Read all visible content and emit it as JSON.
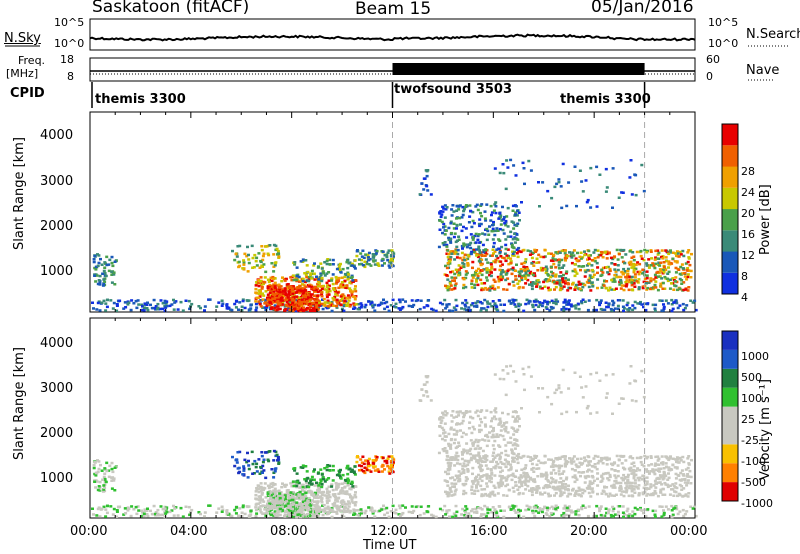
{
  "header": {
    "title": "Saskatoon (fitACF)",
    "beam": "Beam 15",
    "date": "05/Jan/2016"
  },
  "left_labels": {
    "nsky": "N.Sky",
    "freq_line1": "Freq.",
    "freq_line2": "[MHz]",
    "cpid": "CPID"
  },
  "right_labels": {
    "nsearch": "N.Search",
    "nave": "Nave"
  },
  "noise_axis": {
    "top": "10^5",
    "bottom": "10^0",
    "right_top": "10^5",
    "right_bottom": "10^0"
  },
  "freq_axis": {
    "left_ticks": [
      "18",
      "8"
    ],
    "right_ticks": [
      "60",
      "0"
    ]
  },
  "cpid_segments": [
    {
      "label": "themis 3300",
      "start_hour": 0,
      "end_hour": 12
    },
    {
      "label": "twofsound 3503",
      "start_hour": 12,
      "end_hour": 22
    },
    {
      "label": "themis 3300",
      "start_hour": 22,
      "end_hour": 24
    }
  ],
  "colors": {
    "power": [
      "#1030e0",
      "#1a58b8",
      "#3a8a78",
      "#4aa04a",
      "#c8c800",
      "#f0a000",
      "#f06000",
      "#e80000"
    ],
    "velocity": [
      "#e00000",
      "#ff8000",
      "#f8c000",
      "#c8c8c0",
      "#c8c8c0",
      "#30c030",
      "#208040",
      "#1e5ac8",
      "#1a30c0"
    ]
  },
  "chart_data": [
    {
      "type": "heatmap",
      "name": "power",
      "ylabel": "Slant Range [km]",
      "yticks": [
        "4000",
        "3000",
        "2000",
        "1000"
      ],
      "ylim": [
        200,
        4600
      ],
      "xlim_hours": [
        0,
        24
      ],
      "colorbar": {
        "label": "Power [dB]",
        "ticks": [
          "28",
          "24",
          "20",
          "16",
          "12",
          "8",
          "4"
        ]
      }
    },
    {
      "type": "heatmap",
      "name": "velocity",
      "ylabel": "Slant Range [km]",
      "yticks": [
        "4000",
        "3000",
        "2000",
        "1000"
      ],
      "ylim": [
        200,
        4600
      ],
      "xlim_hours": [
        0,
        24
      ],
      "xticks": [
        "00:00",
        "04:00",
        "08:00",
        "12:00",
        "16:00",
        "20:00",
        "00:00"
      ],
      "xlabel": "Time UT",
      "colorbar": {
        "label": "Velocity [m s⁻¹]",
        "ticks": [
          "1000",
          "500",
          "100",
          "25",
          "-25",
          "-100",
          "-500",
          "-1000"
        ]
      }
    }
  ]
}
